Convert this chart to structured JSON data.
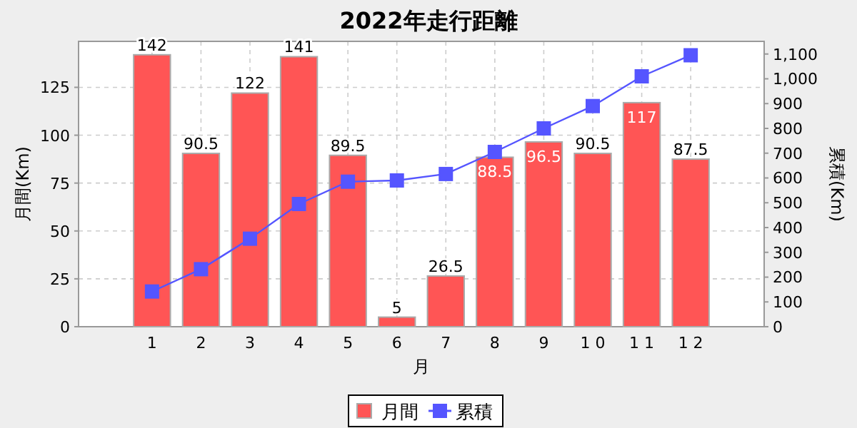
{
  "chart_data": {
    "type": "bar",
    "title": "2022年走行距離",
    "xlabel": "月",
    "ylabel": "月間(Km)",
    "y2label": "累積(Km)",
    "categories": [
      "1",
      "2",
      "3",
      "4",
      "5",
      "6",
      "7",
      "8",
      "9",
      "1 0",
      "1 1",
      "1 2"
    ],
    "series": [
      {
        "name": "月間",
        "color": "#ff5555",
        "values": [
          142,
          90.5,
          122,
          141,
          89.5,
          5,
          26.5,
          88.5,
          96.5,
          90.5,
          117,
          87.5
        ],
        "value_labels": [
          "142",
          "90.5",
          "122",
          "141",
          "89.5",
          "5",
          "26.5",
          "88.5",
          "96.5",
          "90.5",
          "117",
          "87.5"
        ]
      },
      {
        "name": "累積",
        "type": "line",
        "axis": "y2",
        "color": "#5555ff",
        "marker": "square",
        "values": [
          142,
          232,
          355,
          495,
          585,
          590,
          616,
          705,
          800,
          890,
          1010,
          1095
        ]
      }
    ],
    "ylim": [
      0,
      149
    ],
    "yticks": [
      0,
      25,
      50,
      75,
      100,
      125
    ],
    "y2lim": [
      0,
      1151
    ],
    "y2ticks": [
      0,
      {
        "value": 100,
        "label": "100"
      },
      {
        "value": 200,
        "label": "200"
      },
      {
        "value": 300,
        "label": "300"
      },
      {
        "value": 400,
        "label": "400"
      },
      {
        "value": 500,
        "label": "500"
      },
      {
        "value": 600,
        "label": "600"
      },
      {
        "value": 700,
        "label": "700"
      },
      {
        "value": 800,
        "label": "800"
      },
      {
        "value": 900,
        "label": "900"
      },
      {
        "value": 1000,
        "label": "1,000"
      },
      {
        "value": 1100,
        "label": "1,100"
      }
    ],
    "grid": true,
    "legend": "bottom"
  }
}
